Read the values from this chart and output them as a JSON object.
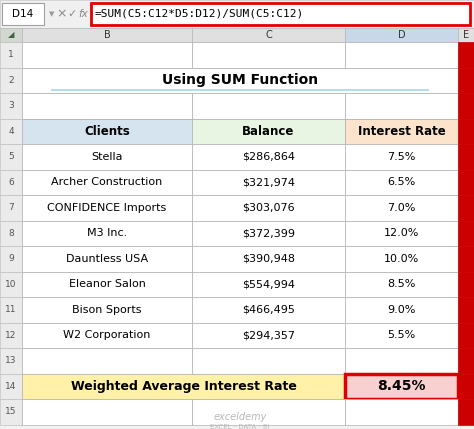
{
  "title": "Using SUM Function",
  "formula_bar_cell": "D14",
  "formula_bar_formula": "=SUM(C5:C12*D5:D12)/SUM(C5:C12)",
  "col_headers": [
    "Clients",
    "Balance",
    "Interest Rate"
  ],
  "rows": [
    [
      "Stella",
      "$286,864",
      "7.5%"
    ],
    [
      "Archer Construction",
      "$321,974",
      "6.5%"
    ],
    [
      "CONFIDENCE Imports",
      "$303,076",
      "7.0%"
    ],
    [
      "M3 Inc.",
      "$372,399",
      "12.0%"
    ],
    [
      "Dauntless USA",
      "$390,948",
      "10.0%"
    ],
    [
      "Eleanor Salon",
      "$554,994",
      "8.5%"
    ],
    [
      "Bison Sports",
      "$466,495",
      "9.0%"
    ],
    [
      "W2 Corporation",
      "$294,357",
      "5.5%"
    ]
  ],
  "footer_label": "Weighted Average Interest Rate",
  "footer_value": "8.45%",
  "col_header_bg_clients": "#d6e4f0",
  "col_header_bg_balance": "#e8f5e2",
  "col_header_bg_interest": "#fce4cc",
  "footer_bg": "#fff2a8",
  "footer_value_bg": "#f9d0d0",
  "grid_color": "#b0b0b0",
  "formula_bar_border": "#e00000",
  "scrollbar_color": "#cc0000",
  "bg_color": "#f2f2f2",
  "title_underline_color": "#a8d4e8",
  "col_header_row_bg": "#e0e0e0",
  "row_num_bg": "#ebebeb",
  "watermark_text": "exceldemy",
  "watermark_sub": "EXCEL · DATA · BI"
}
